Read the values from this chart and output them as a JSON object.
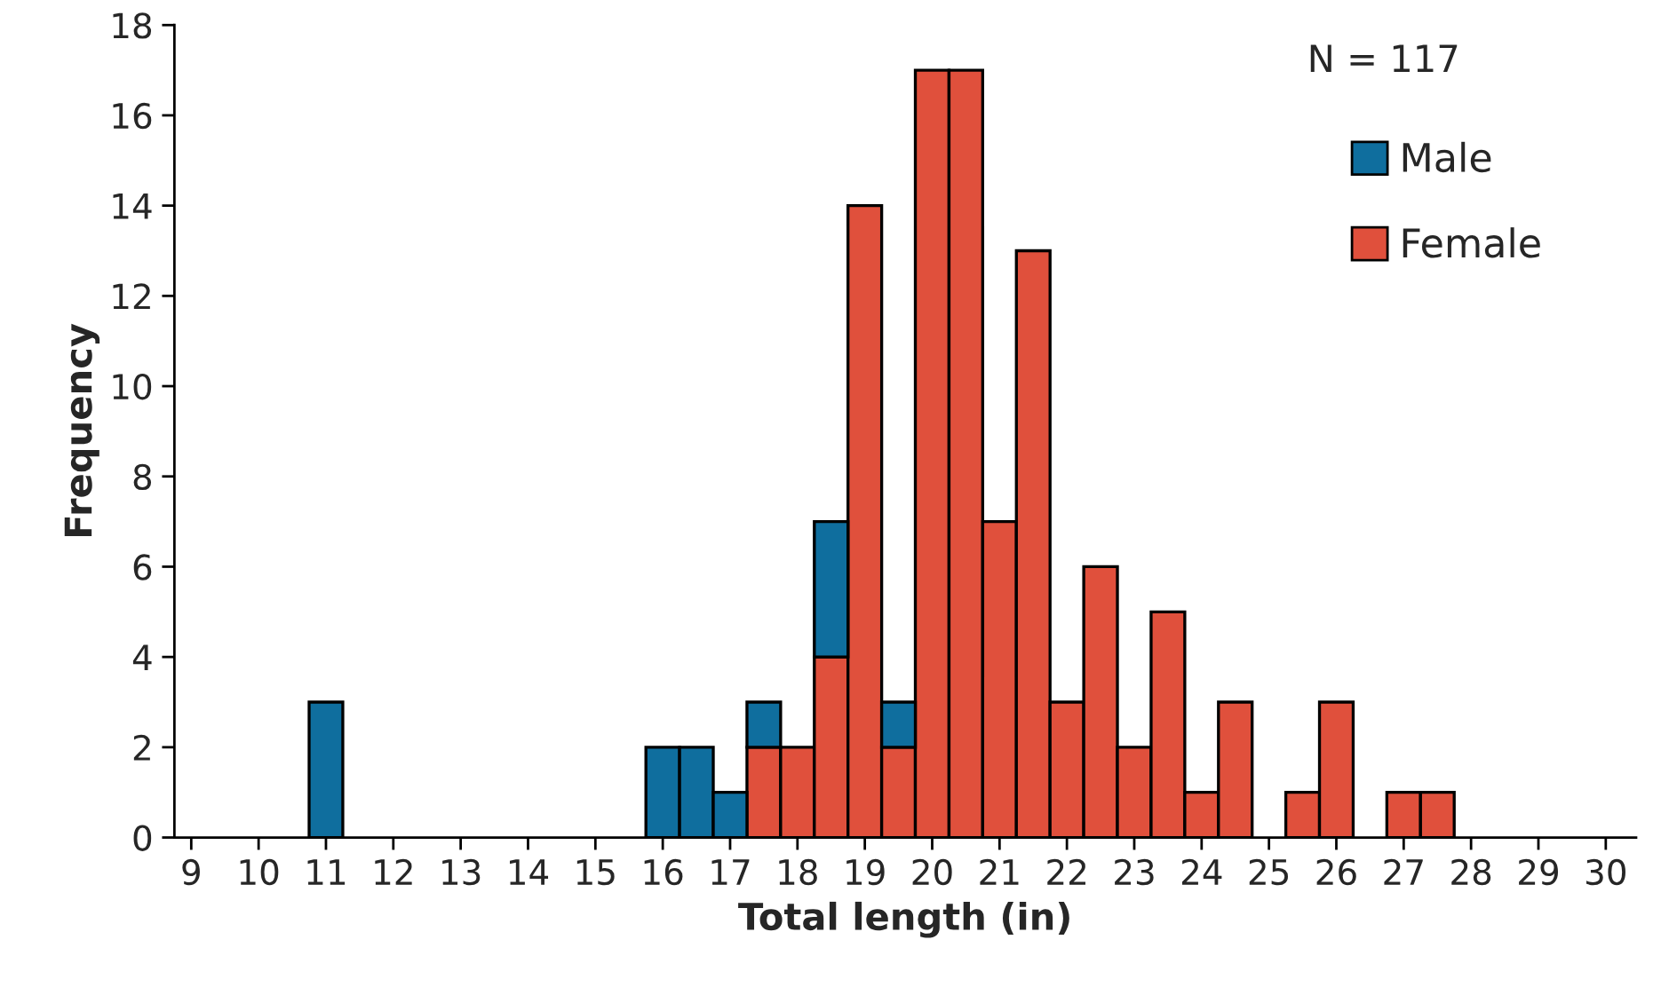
{
  "chart_data": {
    "type": "bar",
    "stacked": true,
    "xlabel": "Total length (in)",
    "ylabel": "Frequency",
    "x": [
      11,
      16,
      16.5,
      17,
      17.5,
      18,
      18.5,
      19,
      19.5,
      20,
      20.5,
      21,
      21.5,
      22,
      22.5,
      23,
      23.5,
      24,
      24.5,
      25.5,
      26,
      27,
      27.5
    ],
    "series": [
      {
        "name": "Female",
        "color": "#e0503c",
        "values": [
          null,
          null,
          null,
          null,
          2,
          2,
          4,
          14,
          2,
          17,
          17,
          7,
          13,
          3,
          6,
          2,
          5,
          1,
          3,
          1,
          3,
          1,
          1
        ]
      },
      {
        "name": "Male",
        "color": "#0f6e9e",
        "values": [
          3,
          2,
          2,
          1,
          1,
          null,
          3,
          null,
          1,
          null,
          null,
          null,
          null,
          null,
          null,
          null,
          null,
          null,
          null,
          null,
          null,
          null,
          null
        ]
      }
    ],
    "xlim": [
      8.75,
      30.45
    ],
    "xticks": [
      9,
      10,
      11,
      12,
      13,
      14,
      15,
      16,
      17,
      18,
      19,
      20,
      21,
      22,
      23,
      24,
      25,
      26,
      27,
      28,
      29,
      30
    ],
    "ylim": [
      0,
      18
    ],
    "yticks": [
      0,
      2,
      4,
      6,
      8,
      10,
      12,
      14,
      16,
      18
    ],
    "grid": false,
    "legend": "top right",
    "annotations": [
      "N = 117"
    ]
  }
}
